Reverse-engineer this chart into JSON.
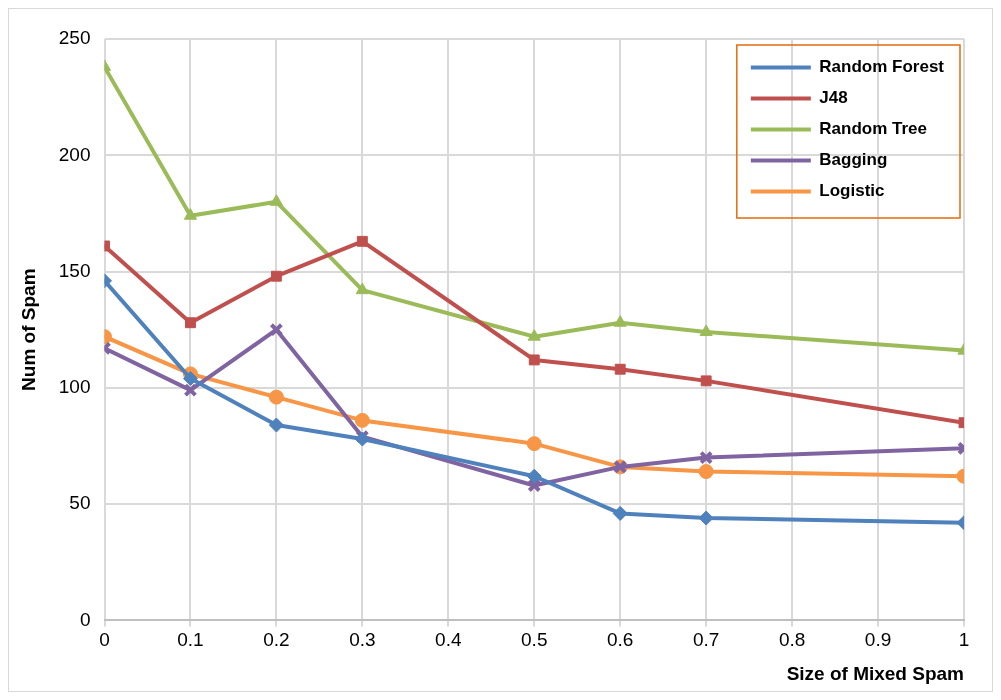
{
  "chart_data": {
    "type": "line",
    "xlabel": "Size of Mixed Spam",
    "ylabel": "Num of Spam",
    "x": [
      0,
      0.1,
      0.2,
      0.3,
      0.5,
      0.6,
      0.7,
      1
    ],
    "series": [
      {
        "name": "Random Forest",
        "color": "#4f81bd",
        "marker": "diamond",
        "values": [
          146,
          104,
          84,
          78,
          62,
          46,
          44,
          42
        ]
      },
      {
        "name": "J48",
        "color": "#c0504d",
        "marker": "square",
        "values": [
          161,
          128,
          148,
          163,
          112,
          108,
          103,
          85
        ]
      },
      {
        "name": "Random Tree",
        "color": "#9bbb59",
        "marker": "triangle",
        "values": [
          238,
          174,
          180,
          142,
          122,
          128,
          124,
          116
        ]
      },
      {
        "name": "Bagging",
        "color": "#8064a2",
        "marker": "cross",
        "values": [
          117,
          99,
          125,
          79,
          58,
          66,
          70,
          74
        ]
      },
      {
        "name": "Logistic",
        "color": "#f79646",
        "marker": "circle",
        "values": [
          122,
          106,
          96,
          86,
          76,
          66,
          64,
          62
        ]
      }
    ],
    "xlim": [
      0,
      1
    ],
    "xticks": [
      0,
      0.1,
      0.2,
      0.3,
      0.4,
      0.5,
      0.6,
      0.7,
      0.8,
      0.9,
      1
    ],
    "ylim": [
      0,
      250
    ],
    "yticks": [
      0,
      50,
      100,
      150,
      200,
      250
    ],
    "grid": true,
    "legend": "top right",
    "line_style": "solid"
  }
}
